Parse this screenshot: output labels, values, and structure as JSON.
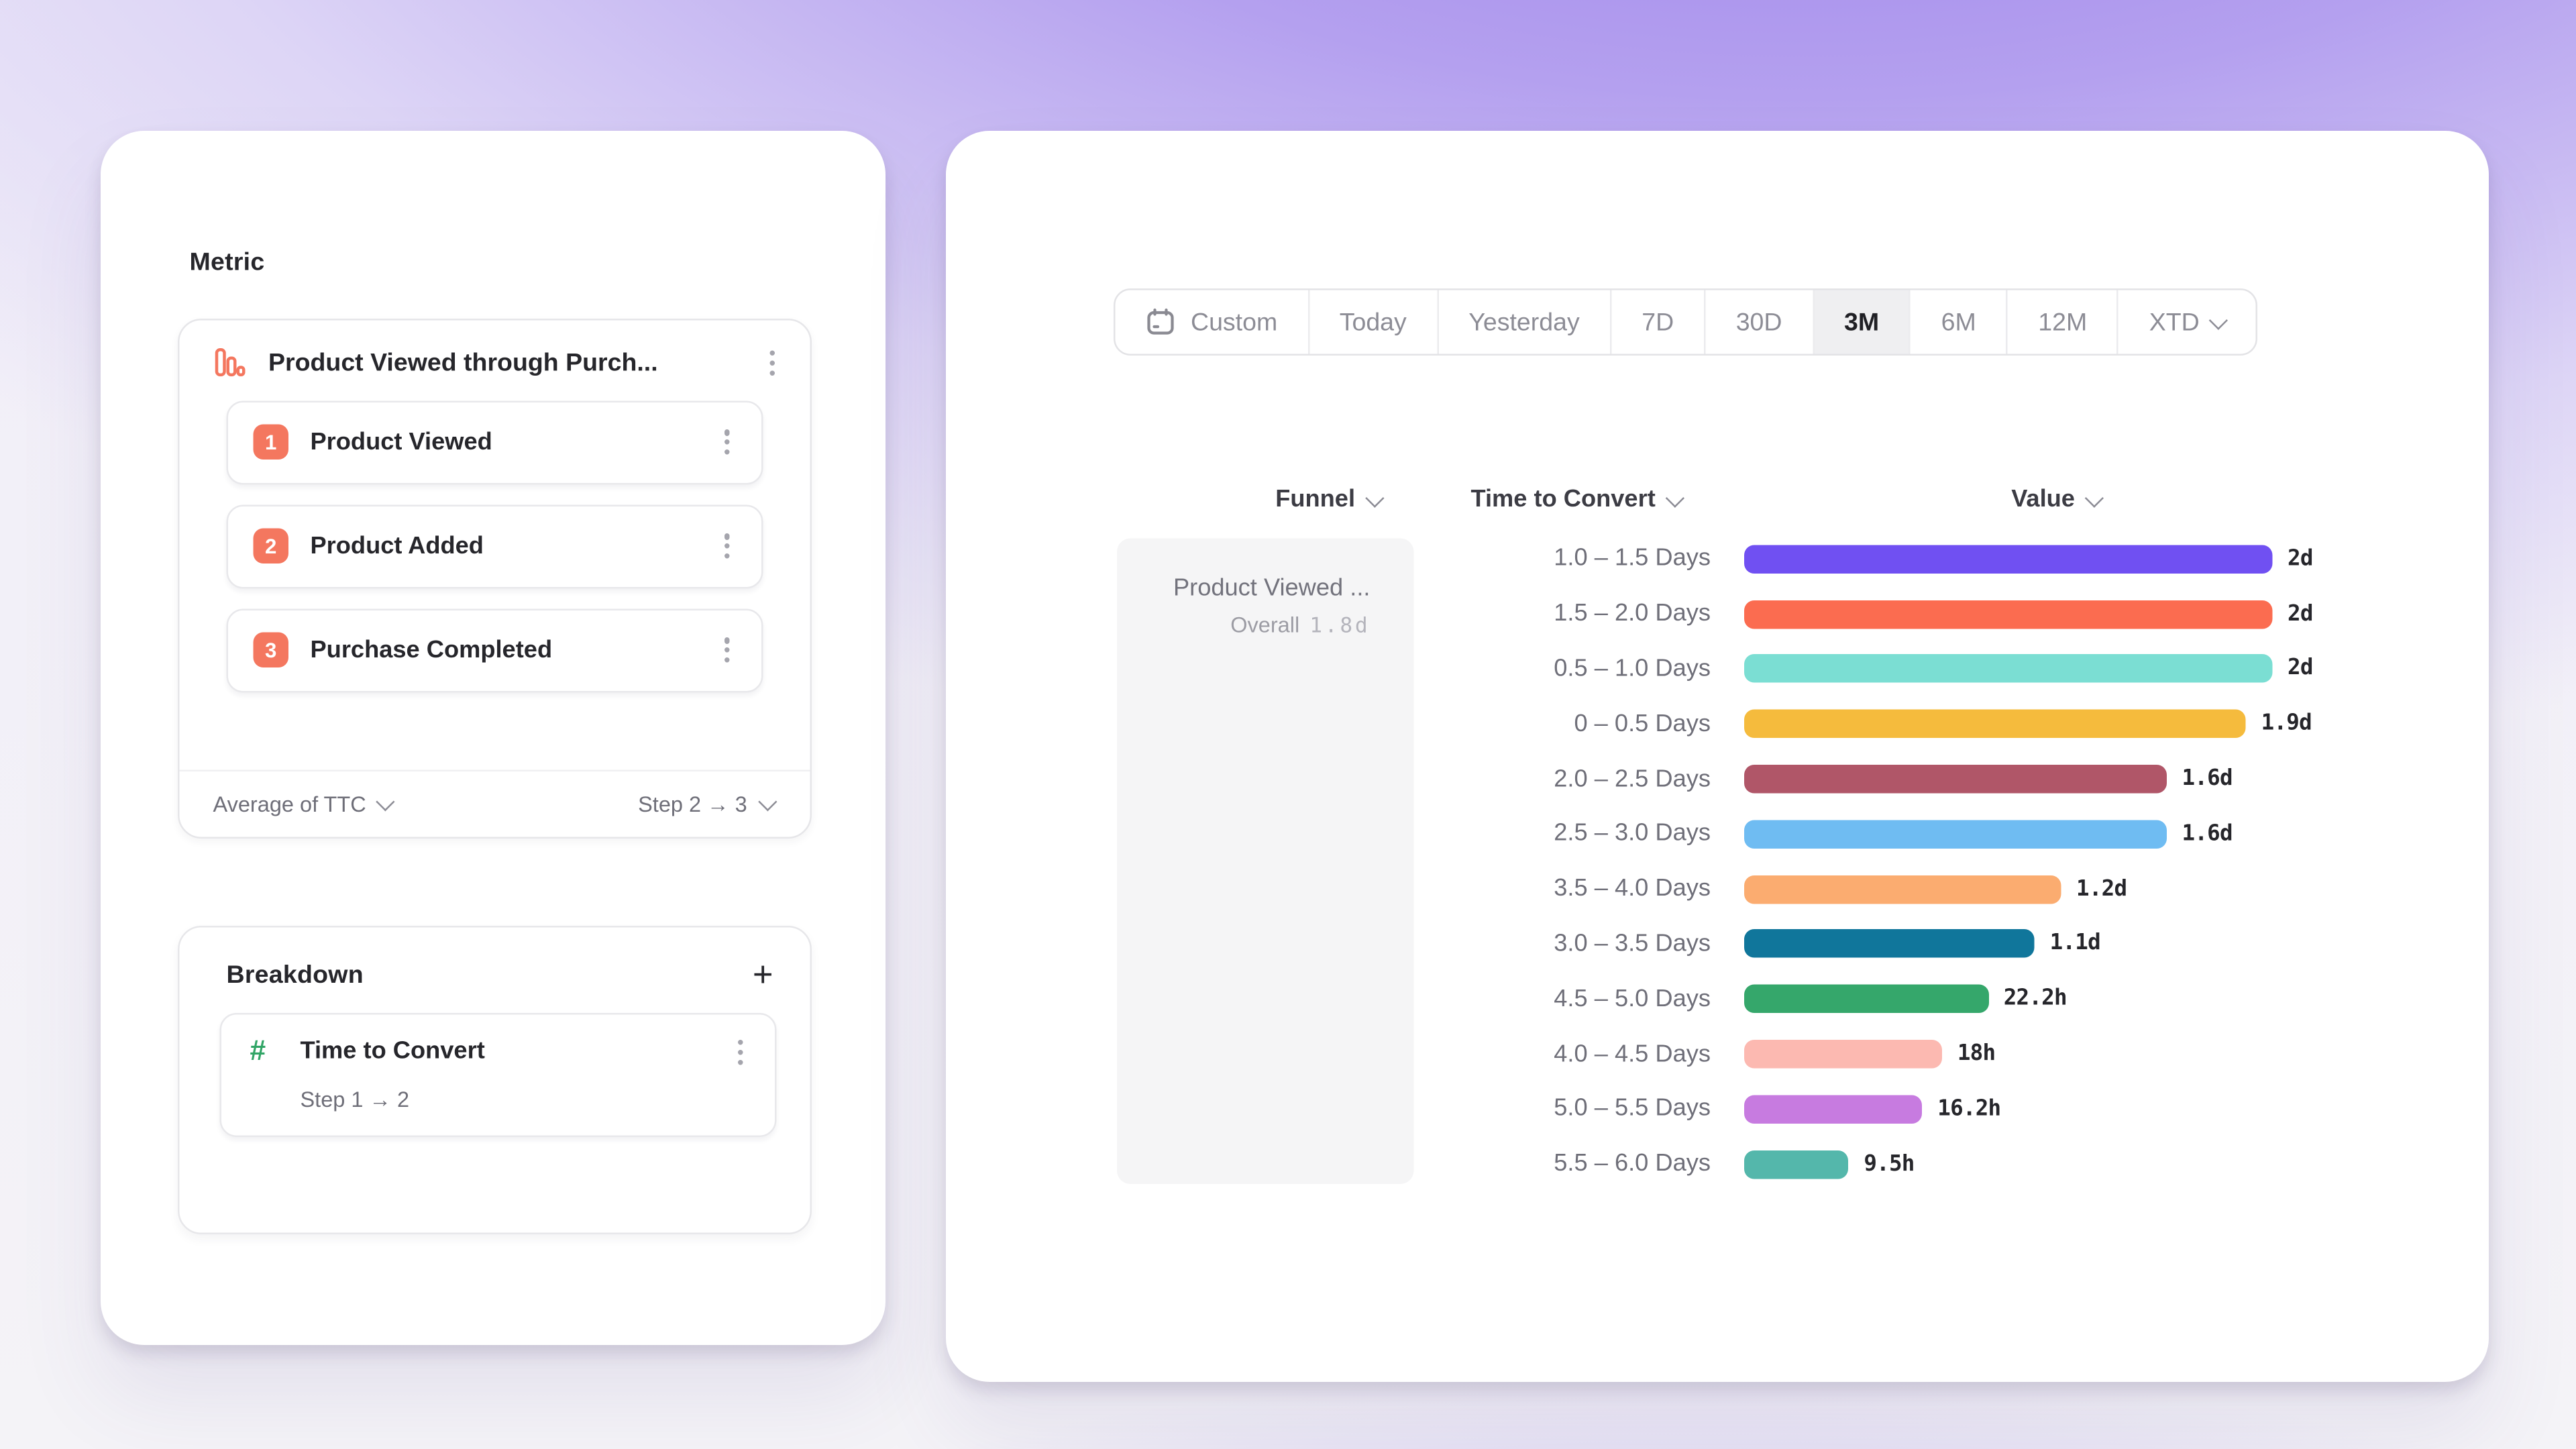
{
  "left_panel": {
    "metric_section": {
      "title": "Metric",
      "metric_name": "Product Viewed through Purch...",
      "metric_icon": "funnel-bars-icon",
      "steps": [
        {
          "num": "1",
          "label": "Product Viewed"
        },
        {
          "num": "2",
          "label": "Product Added"
        },
        {
          "num": "3",
          "label": "Purchase Completed"
        }
      ],
      "footer": {
        "aggregation": "Average of TTC",
        "step_range": "Step 2 → 3"
      }
    },
    "breakdown_section": {
      "title": "Breakdown",
      "add_label": "+",
      "item": {
        "icon": "hash-icon",
        "label": "Time to Convert",
        "sub": "Step 1 → 2"
      }
    }
  },
  "toolbar": {
    "selected": "3M",
    "items": [
      {
        "label": "Custom",
        "icon": "calendar-icon"
      },
      {
        "label": "Today"
      },
      {
        "label": "Yesterday"
      },
      {
        "label": "7D"
      },
      {
        "label": "30D"
      },
      {
        "label": "3M"
      },
      {
        "label": "6M"
      },
      {
        "label": "12M"
      },
      {
        "label": "XTD",
        "chevron": true
      }
    ]
  },
  "table": {
    "headers": [
      {
        "label": "Funnel"
      },
      {
        "label": "Time to Convert"
      },
      {
        "label": "Value"
      }
    ],
    "funnel_cell": {
      "name": "Product Viewed ...",
      "overall_label": "Overall",
      "overall_value": "1.8d"
    }
  },
  "colors": {
    "accent_coral": "#f4775f",
    "accent_green": "#31a566",
    "selected_segment_bg": "#efeff1",
    "funnel_cell_bg": "#f5f5f6"
  },
  "chart_data": {
    "type": "bar",
    "orientation": "horizontal",
    "title": "Time to Convert breakdown of Product Viewed funnel",
    "x_unit": "hours",
    "x_max": 48,
    "grid": false,
    "legend": "none",
    "categories": [
      "1.0 – 1.5 Days",
      "1.5 – 2.0 Days",
      "0.5 – 1.0 Days",
      "0 – 0.5 Days",
      "2.0 – 2.5 Days",
      "2.5 – 3.0 Days",
      "3.5 – 4.0 Days",
      "3.0 – 3.5 Days",
      "4.5 – 5.0 Days",
      "4.0 – 4.5 Days",
      "5.0 – 5.5 Days",
      "5.5 – 6.0 Days"
    ],
    "values_hours": [
      48,
      48,
      48,
      45.6,
      38.4,
      38.4,
      28.8,
      26.4,
      22.2,
      18,
      16.2,
      9.5
    ],
    "value_labels": [
      "2d",
      "2d",
      "2d",
      "1.9d",
      "1.6d",
      "1.6d",
      "1.2d",
      "1.1d",
      "22.2h",
      "18h",
      "16.2h",
      "9.5h"
    ],
    "colors": [
      "#7050f2",
      "#fb6c50",
      "#7bded3",
      "#f5bb3d",
      "#b05668",
      "#6fbcf2",
      "#fbac70",
      "#10769b",
      "#35a76b",
      "#fcb9b1",
      "#c77be0",
      "#54b7ab"
    ]
  }
}
